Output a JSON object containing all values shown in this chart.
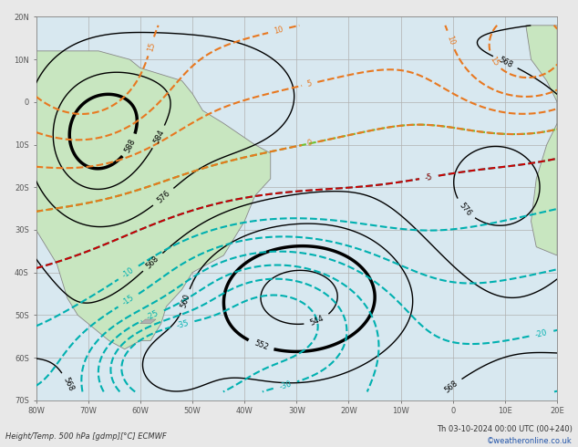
{
  "title_left": "Height/Temp. 500 hPa [gdmp][°C] ECMWF",
  "title_right": "Th 03-10-2024 00:00 UTC (00+240)",
  "credit": "©weatheronline.co.uk",
  "background_ocean": "#d8e8f0",
  "background_land_green": "#c8e6c0",
  "background_land_grey": "#d0d0d0",
  "grid_color": "#b0b0b0",
  "contour_color_black": "#000000",
  "contour_color_red": "#cc0000",
  "contour_color_orange": "#e87820",
  "contour_color_cyan": "#00b0b0",
  "contour_color_green": "#70c030",
  "contour_color_blue": "#0050ff",
  "axis_label_color": "#555555",
  "fig_width": 6.34,
  "fig_height": 4.9,
  "dpi": 100,
  "xlabel_left": "Height/Temp. 500 hPa [gdmp][°C] ECMWF",
  "xlabel_right": "Th 03-10-2024 00:00 UTC (00+240)"
}
